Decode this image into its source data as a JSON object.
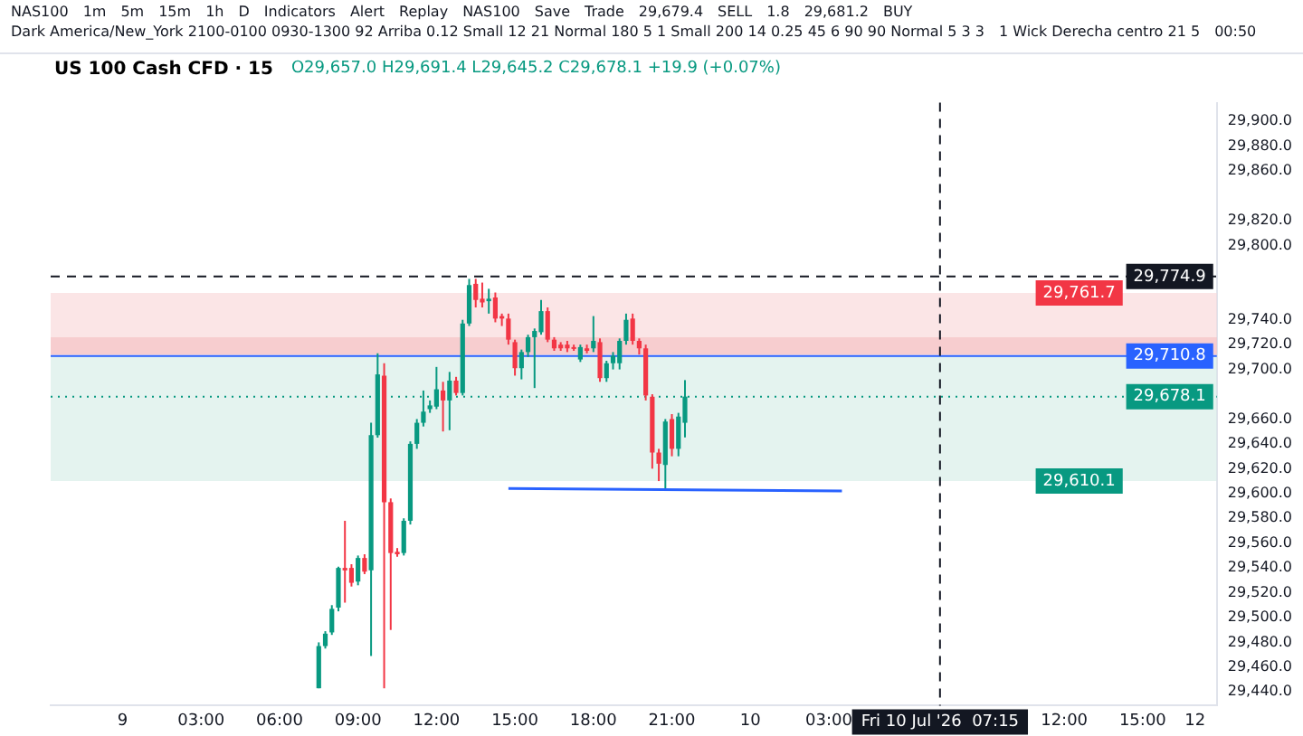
{
  "chart_data": {
    "type": "candlestick",
    "title": "US 100 Cash CFD · 15",
    "subtitle": "O29,657.0 H29,691.4 L29,645.2 C29,678.1 +19.9 (+0.07%)",
    "annotations": [
      "NAS100",
      "1m",
      "5m",
      "15m",
      "1h",
      "D",
      "Indicators",
      "Alert",
      "Replay",
      "NAS100",
      "Save",
      "Trade",
      "29,679.4",
      "SELL",
      "1.8",
      "29,681.2",
      "BUY",
      "Dark America/New_York 2100-0100 0930-1300 92 Arriba 0.12 Small 12 21 Normal 180 5 1 Small 200 14 0.25 45 6 90 90 Normal 5 3 3",
      "1 Wick Derecha centro 21 5",
      "00:50"
    ],
    "x": [
      "2026-07-09T07:30",
      "2026-07-09T07:45",
      "2026-07-09T08:00",
      "2026-07-09T08:15",
      "2026-07-09T08:30",
      "2026-07-09T08:45",
      "2026-07-09T09:00",
      "2026-07-09T09:15",
      "2026-07-09T09:30",
      "2026-07-09T09:45",
      "2026-07-09T10:00",
      "2026-07-09T10:15",
      "2026-07-09T10:30",
      "2026-07-09T10:45",
      "2026-07-09T11:00",
      "2026-07-09T11:15",
      "2026-07-09T11:30",
      "2026-07-09T11:45",
      "2026-07-09T12:00",
      "2026-07-09T12:15",
      "2026-07-09T12:30",
      "2026-07-09T12:45",
      "2026-07-09T13:00",
      "2026-07-09T13:15",
      "2026-07-09T13:30",
      "2026-07-09T13:45",
      "2026-07-09T14:00",
      "2026-07-09T14:15",
      "2026-07-09T14:30",
      "2026-07-09T14:45",
      "2026-07-09T15:00",
      "2026-07-09T15:15",
      "2026-07-09T15:30",
      "2026-07-09T15:45",
      "2026-07-09T16:00",
      "2026-07-09T16:15",
      "2026-07-09T16:30",
      "2026-07-09T16:45",
      "2026-07-09T17:00",
      "2026-07-09T17:15",
      "2026-07-09T17:30",
      "2026-07-09T17:45",
      "2026-07-09T18:00",
      "2026-07-09T18:15",
      "2026-07-09T18:30",
      "2026-07-09T18:45",
      "2026-07-09T19:00",
      "2026-07-09T19:15",
      "2026-07-09T19:30",
      "2026-07-09T19:45",
      "2026-07-09T20:00",
      "2026-07-09T20:15",
      "2026-07-09T20:30",
      "2026-07-09T20:45",
      "2026-07-09T21:00",
      "2026-07-09T21:15",
      "2026-07-09T21:30"
    ],
    "ohlc": [
      [
        29443,
        29480,
        29443,
        29477
      ],
      [
        29477,
        29489,
        29475,
        29487
      ],
      [
        29488,
        29510,
        29486,
        29507
      ],
      [
        29508,
        29541,
        29505,
        29540
      ],
      [
        29540,
        29578,
        29512,
        29538
      ],
      [
        29540,
        29543,
        29525,
        29528
      ],
      [
        29529,
        29550,
        29526,
        29548
      ],
      [
        29548,
        29551,
        29535,
        29537
      ],
      [
        29538,
        29657,
        29469,
        29647
      ],
      [
        29647,
        29713,
        29645,
        29696
      ],
      [
        29695,
        29705,
        29443,
        29593
      ],
      [
        29593,
        29596,
        29490,
        29552
      ],
      [
        29553,
        29556,
        29549,
        29551
      ],
      [
        29552,
        29580,
        29550,
        29578
      ],
      [
        29578,
        29642,
        29575,
        29640
      ],
      [
        29640,
        29660,
        29636,
        29657
      ],
      [
        29657,
        29683,
        29654,
        29666
      ],
      [
        29668,
        29675,
        29665,
        29671
      ],
      [
        29670,
        29702,
        29668,
        29684
      ],
      [
        29683,
        29690,
        29650,
        29675
      ],
      [
        29675,
        29698,
        29651,
        29691
      ],
      [
        29691,
        29694,
        29679,
        29681
      ],
      [
        29681,
        29740,
        29679,
        29737
      ],
      [
        29737,
        29773,
        29735,
        29768
      ],
      [
        29769,
        29773,
        29750,
        29756
      ],
      [
        29757,
        29770,
        29750,
        29754
      ],
      [
        29755,
        29765,
        29745,
        29757
      ],
      [
        29758,
        29762,
        29738,
        29741
      ],
      [
        29743,
        29745,
        29735,
        29741
      ],
      [
        29741,
        29745,
        29720,
        29724
      ],
      [
        29722,
        29724,
        29695,
        29701
      ],
      [
        29701,
        29716,
        29692,
        29714
      ],
      [
        29714,
        29728,
        29710,
        29726
      ],
      [
        29726,
        29733,
        29685,
        29731
      ],
      [
        29730,
        29756,
        29728,
        29747
      ],
      [
        29747,
        29750,
        29722,
        29724
      ],
      [
        29724,
        29726,
        29715,
        29717
      ],
      [
        29720,
        29722,
        29715,
        29717
      ],
      [
        29720,
        29723,
        29714,
        29717
      ],
      [
        29718,
        29720,
        29715,
        29717
      ],
      [
        29708,
        29720,
        29706,
        29718
      ],
      [
        29717,
        29720,
        29713,
        29715
      ],
      [
        29717,
        29743,
        29714,
        29723
      ],
      [
        29722,
        29725,
        29690,
        29693
      ],
      [
        29693,
        29707,
        29690,
        29705
      ],
      [
        29705,
        29714,
        29700,
        29711
      ],
      [
        29705,
        29725,
        29700,
        29723
      ],
      [
        29723,
        29745,
        29720,
        29740
      ],
      [
        29741,
        29745,
        29720,
        29723
      ],
      [
        29723,
        29725,
        29712,
        29717
      ],
      [
        29717,
        29720,
        29675,
        29679
      ],
      [
        29678,
        29680,
        29620,
        29633
      ],
      [
        29633,
        29636,
        29610,
        29624
      ],
      [
        29623,
        29660,
        29603,
        29658
      ],
      [
        29660,
        29664,
        29630,
        29636
      ],
      [
        29636,
        29665,
        29630,
        29662
      ],
      [
        29657.0,
        29691.4,
        29645.2,
        29678.1
      ]
    ],
    "colors": [
      "#089981",
      "#089981",
      "#089981",
      "#089981",
      "#f23645",
      "#f23645",
      "#089981",
      "#f23645",
      "#089981",
      "#089981",
      "#f23645",
      "#f23645",
      "#f23645",
      "#089981",
      "#089981",
      "#089981",
      "#089981",
      "#089981",
      "#089981",
      "#f23645",
      "#089981",
      "#f23645",
      "#089981",
      "#089981",
      "#f23645",
      "#f23645",
      "#089981",
      "#f23645",
      "#f23645",
      "#f23645",
      "#f23645",
      "#089981",
      "#089981",
      "#089981",
      "#089981",
      "#f23645",
      "#f23645",
      "#f23645",
      "#f23645",
      "#f23645",
      "#089981",
      "#f23645",
      "#089981",
      "#f23645",
      "#089981",
      "#089981",
      "#089981",
      "#089981",
      "#f23645",
      "#f23645",
      "#f23645",
      "#f23645",
      "#f23645",
      "#089981",
      "#f23645",
      "#089981",
      "#089981"
    ],
    "series": [
      {
        "type": "line",
        "x": [
          "2026-07-09T14:45",
          "2026-07-10T03:30"
        ],
        "values": [
          29604,
          29602
        ],
        "color": "#2962ff"
      }
    ],
    "bands": [
      {
        "axis": "y",
        "from": 29712,
        "to": 29726,
        "color": "#f09aa0"
      },
      {
        "axis": "y",
        "from": 29710.8,
        "to": 29761.7,
        "label": "29,761.7",
        "color": "#f8d3d6"
      },
      {
        "axis": "y",
        "from": 29710.8,
        "to": 29610.1,
        "label": "29,610.1",
        "color": "#d2ebe5"
      }
    ],
    "ref_lines": [
      {
        "axis": "y",
        "value": 29774.9,
        "label": "29,774.9",
        "color": "#131722",
        "line_style": "dashed"
      },
      {
        "axis": "y",
        "value": 29710.8,
        "label": "29,710.8",
        "color": "#2962ff",
        "line_style": "solid"
      },
      {
        "axis": "y",
        "value": 29678.1,
        "label": "29,678.1",
        "color": "#089981",
        "line_style": "dotted"
      },
      {
        "axis": "x",
        "value": "2026-07-10T07:15",
        "label": "Fri 10 Jul '26  07:15",
        "color": "#131722",
        "line_style": "dashed"
      }
    ],
    "xlim": [
      "2026-07-08T21:15",
      "2026-07-10T17:50"
    ],
    "xticks": [
      {
        "value": "2026-07-09T00:00",
        "label": "9"
      },
      {
        "value": "2026-07-09T03:00",
        "label": "03:00"
      },
      {
        "value": "2026-07-09T06:00",
        "label": "06:00"
      },
      {
        "value": "2026-07-09T09:00",
        "label": "09:00"
      },
      {
        "value": "2026-07-09T12:00",
        "label": "12:00"
      },
      {
        "value": "2026-07-09T15:00",
        "label": "15:00"
      },
      {
        "value": "2026-07-09T18:00",
        "label": "18:00"
      },
      {
        "value": "2026-07-09T21:00",
        "label": "21:00"
      },
      {
        "value": "2026-07-10T00:00",
        "label": "10"
      },
      {
        "value": "2026-07-10T03:00",
        "label": "03:00"
      },
      {
        "value": "2026-07-10T12:00",
        "label": "12:00"
      },
      {
        "value": "2026-07-10T15:00",
        "label": "15:00"
      },
      {
        "value": "2026-07-10T17:00",
        "label": "12"
      }
    ],
    "ylim": [
      29429,
      29915
    ],
    "yticks": [
      {
        "value": 29440,
        "label": "29,440.0"
      },
      {
        "value": 29460,
        "label": "29,460.0"
      },
      {
        "value": 29480,
        "label": "29,480.0"
      },
      {
        "value": 29500,
        "label": "29,500.0"
      },
      {
        "value": 29520,
        "label": "29,520.0"
      },
      {
        "value": 29540,
        "label": "29,540.0"
      },
      {
        "value": 29560,
        "label": "29,560.0"
      },
      {
        "value": 29580,
        "label": "29,580.0"
      },
      {
        "value": 29600,
        "label": "29,600.0"
      },
      {
        "value": 29620,
        "label": "29,620.0"
      },
      {
        "value": 29640,
        "label": "29,640.0"
      },
      {
        "value": 29660,
        "label": "29,660.0"
      },
      {
        "value": 29700,
        "label": "29,700.0"
      },
      {
        "value": 29720,
        "label": "29,720.0"
      },
      {
        "value": 29740,
        "label": "29,740.0"
      },
      {
        "value": 29800,
        "label": "29,800.0"
      },
      {
        "value": 29820,
        "label": "29,820.0"
      },
      {
        "value": 29860,
        "label": "29,860.0"
      },
      {
        "value": 29880,
        "label": "29,880.0"
      },
      {
        "value": 29900,
        "label": "29,900.0"
      }
    ],
    "legend": false
  }
}
